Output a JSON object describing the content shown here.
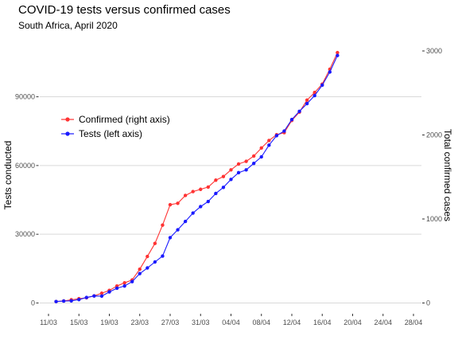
{
  "chart_data": {
    "type": "line",
    "title": "COVID-19 tests versus confirmed cases",
    "subtitle": "South Africa, April 2020",
    "ylabel_left": "Tests conducted",
    "ylabel_right": "Total confirmed cases",
    "ylim_left": [
      0,
      110000
    ],
    "ylim_right": [
      0,
      3000
    ],
    "yticks_left": [
      0,
      30000,
      60000,
      90000
    ],
    "yticks_left_labels": [
      "0",
      "30000",
      "60000",
      "90000"
    ],
    "yticks_right": [
      0,
      1000,
      2000,
      3000
    ],
    "yticks_right_labels": [
      "0",
      "1000",
      "2000",
      "3000"
    ],
    "xticks": [
      "2020-03-11",
      "2020-03-15",
      "2020-03-19",
      "2020-03-23",
      "2020-03-27",
      "2020-03-31",
      "2020-04-04",
      "2020-04-08",
      "2020-04-12",
      "2020-04-16",
      "2020-04-20",
      "2020-04-24",
      "2020-04-28"
    ],
    "xtick_labels": [
      "11/03",
      "15/03",
      "19/03",
      "23/03",
      "27/03",
      "31/03",
      "04/04",
      "08/04",
      "12/04",
      "16/04",
      "20/04",
      "24/04",
      "28/04"
    ],
    "xlim": [
      "2020-03-11",
      "2020-04-28"
    ],
    "grid": "horizontal",
    "legend_position": "left",
    "dates": [
      "2020-03-12",
      "2020-03-13",
      "2020-03-14",
      "2020-03-15",
      "2020-03-16",
      "2020-03-17",
      "2020-03-18",
      "2020-03-19",
      "2020-03-20",
      "2020-03-21",
      "2020-03-22",
      "2020-03-23",
      "2020-03-24",
      "2020-03-25",
      "2020-03-26",
      "2020-03-27",
      "2020-03-28",
      "2020-03-29",
      "2020-03-30",
      "2020-03-31",
      "2020-04-01",
      "2020-04-02",
      "2020-04-03",
      "2020-04-04",
      "2020-04-05",
      "2020-04-06",
      "2020-04-07",
      "2020-04-08",
      "2020-04-09",
      "2020-04-10",
      "2020-04-11",
      "2020-04-12",
      "2020-04-13",
      "2020-04-14",
      "2020-04-15",
      "2020-04-16",
      "2020-04-17",
      "2020-04-18"
    ],
    "series": [
      {
        "name": "Confirmed (right axis)",
        "axis": "right",
        "color": "#ff3333",
        "values": [
          17,
          24,
          38,
          51,
          62,
          85,
          116,
          150,
          202,
          240,
          274,
          402,
          554,
          709,
          927,
          1170,
          1187,
          1280,
          1326,
          1353,
          1380,
          1462,
          1505,
          1585,
          1655,
          1686,
          1749,
          1845,
          1934,
          2003,
          2028,
          2173,
          2272,
          2415,
          2506,
          2605,
          2783,
          2980
        ]
      },
      {
        "name": "Tests (left axis)",
        "axis": "left",
        "color": "#1a1aff",
        "values": [
          645,
          848,
          924,
          1476,
          2405,
          3070,
          3000,
          4832,
          6438,
          7425,
          9315,
          12815,
          15290,
          17900,
          20471,
          28537,
          31963,
          35593,
          39259,
          42070,
          44298,
          47801,
          50463,
          53937,
          56873,
          58098,
          60918,
          63776,
          68874,
          73028,
          75053,
          80085,
          83663,
          87022,
          90515,
          95060,
          100827,
          108021
        ]
      }
    ]
  }
}
